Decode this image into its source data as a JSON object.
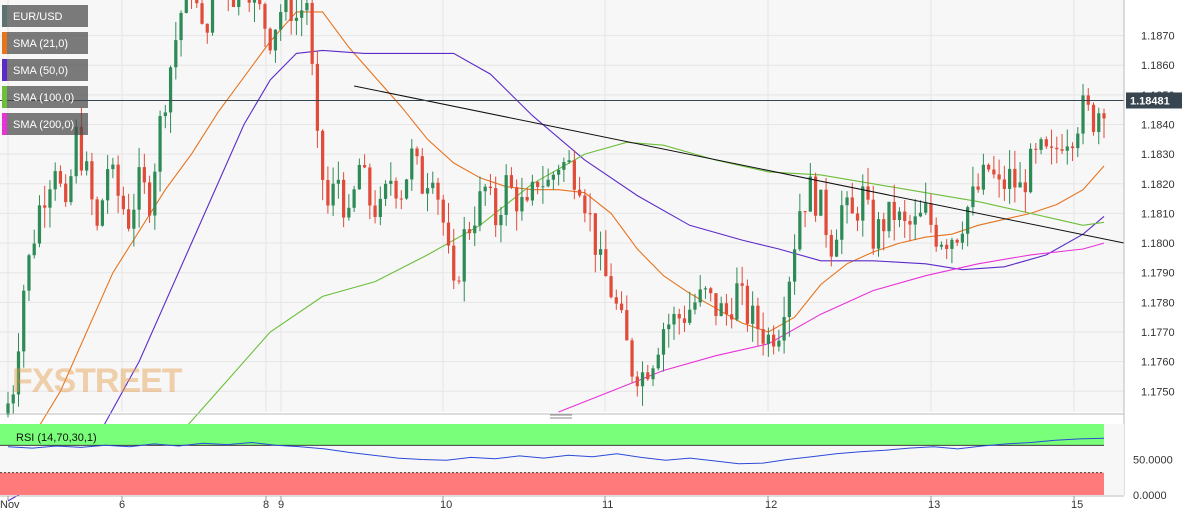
{
  "legend": [
    {
      "label": "EUR/USD",
      "color": "#5b7373"
    },
    {
      "label": "SMA (21,0)",
      "color": "#e8731d"
    },
    {
      "label": "SMA (50,0)",
      "color": "#5b2bc9"
    },
    {
      "label": "SMA (100,0)",
      "color": "#6cbf3a"
    },
    {
      "label": "SMA (200,0)",
      "color": "#e832d8"
    }
  ],
  "rsi_label": "RSI (14,70,30,1)",
  "watermark": "FXSTREET",
  "last_price_label": "1.18481",
  "colors": {
    "up": "#2e8b57",
    "down": "#e04b3a",
    "grid": "#e6e6e6",
    "overbought": "#79ff79",
    "oversold": "#ff7a7a",
    "rsi_line": "#2b4bd8",
    "trendline": "#111111",
    "last_price_bg": "#36454f"
  },
  "chart_data": [
    {
      "type": "candlestick",
      "title": "EUR/USD",
      "x_ticks": [
        "Nov",
        "6",
        "8",
        "9",
        "10",
        "11",
        "12",
        "13",
        "15"
      ],
      "y_ticks": [
        "1.1870",
        "1.1860",
        "1.1850",
        "1.1840",
        "1.1830",
        "1.1820",
        "1.1810",
        "1.1800",
        "1.1790",
        "1.1780",
        "1.1770",
        "1.1760",
        "1.1750"
      ],
      "ylim": [
        1.1743,
        1.1882
      ],
      "last_price": 1.18481,
      "grid": true,
      "legend_position": "top-left",
      "close_path": [
        [
          0,
          1.1746
        ],
        [
          1,
          1.1752
        ],
        [
          3,
          1.1785
        ],
        [
          6,
          1.1812
        ],
        [
          9,
          1.1828
        ],
        [
          11,
          1.1808
        ],
        [
          13,
          1.1836
        ],
        [
          15,
          1.1823
        ],
        [
          17,
          1.1804
        ],
        [
          19,
          1.1826
        ],
        [
          21,
          1.1816
        ],
        [
          23,
          1.1808
        ],
        [
          25,
          1.182
        ],
        [
          27,
          1.1815
        ],
        [
          29,
          1.184
        ],
        [
          31,
          1.186
        ],
        [
          33,
          1.1878
        ],
        [
          35,
          1.1888
        ],
        [
          37,
          1.187
        ],
        [
          39,
          1.1882
        ],
        [
          41,
          1.189
        ],
        [
          43,
          1.1884
        ],
        [
          45,
          1.1892
        ],
        [
          47,
          1.1882
        ],
        [
          50,
          1.187
        ],
        [
          53,
          1.1883
        ],
        [
          55,
          1.1876
        ],
        [
          57,
          1.1882
        ],
        [
          59,
          1.1832
        ],
        [
          61,
          1.1812
        ],
        [
          63,
          1.1822
        ],
        [
          65,
          1.1806
        ],
        [
          67,
          1.1826
        ],
        [
          69,
          1.1814
        ],
        [
          71,
          1.181
        ],
        [
          73,
          1.1822
        ],
        [
          75,
          1.1818
        ],
        [
          77,
          1.1829
        ],
        [
          79,
          1.182
        ],
        [
          81,
          1.1826
        ],
        [
          83,
          1.1807
        ],
        [
          85,
          1.1782
        ],
        [
          87,
          1.1802
        ],
        [
          89,
          1.181
        ],
        [
          91,
          1.1818
        ],
        [
          93,
          1.1808
        ],
        [
          95,
          1.182
        ],
        [
          97,
          1.1815
        ],
        [
          99,
          1.181
        ],
        [
          101,
          1.1822
        ],
        [
          103,
          1.182
        ],
        [
          105,
          1.1827
        ],
        [
          107,
          1.1826
        ],
        [
          109,
          1.1822
        ],
        [
          111,
          1.1808
        ],
        [
          113,
          1.1792
        ],
        [
          115,
          1.1784
        ],
        [
          117,
          1.1772
        ],
        [
          119,
          1.1758
        ],
        [
          121,
          1.1756
        ],
        [
          123,
          1.1762
        ],
        [
          125,
          1.1772
        ],
        [
          127,
          1.1774
        ],
        [
          129,
          1.1776
        ],
        [
          131,
          1.178
        ],
        [
          133,
          1.1782
        ],
        [
          135,
          1.1778
        ],
        [
          137,
          1.1776
        ],
        [
          139,
          1.1784
        ],
        [
          141,
          1.1776
        ],
        [
          143,
          1.1772
        ],
        [
          145,
          1.1768
        ],
        [
          147,
          1.1772
        ],
        [
          149,
          1.179
        ],
        [
          151,
          1.1812
        ],
        [
          153,
          1.1818
        ],
        [
          155,
          1.1812
        ],
        [
          157,
          1.18
        ],
        [
          159,
          1.1812
        ],
        [
          161,
          1.1808
        ],
        [
          163,
          1.1816
        ],
        [
          165,
          1.1802
        ],
        [
          167,
          1.1807
        ],
        [
          169,
          1.181
        ],
        [
          171,
          1.1805
        ],
        [
          173,
          1.1806
        ],
        [
          175,
          1.181
        ],
        [
          177,
          1.1803
        ],
        [
          179,
          1.1802
        ],
        [
          181,
          1.1804
        ],
        [
          183,
          1.1812
        ],
        [
          185,
          1.1818
        ],
        [
          187,
          1.1825
        ],
        [
          189,
          1.1818
        ],
        [
          191,
          1.1822
        ],
        [
          193,
          1.1818
        ],
        [
          195,
          1.1826
        ],
        [
          197,
          1.183
        ],
        [
          199,
          1.1828
        ],
        [
          201,
          1.1836
        ],
        [
          203,
          1.1838
        ],
        [
          205,
          1.1845
        ],
        [
          207,
          1.1842
        ],
        [
          209,
          1.1848
        ]
      ],
      "candles": 210,
      "sma": [
        {
          "name": "SMA (21,0)",
          "color": "#e8731d",
          "points": [
            [
              0,
              1.1721
            ],
            [
              10,
              1.175
            ],
            [
              20,
              1.179
            ],
            [
              30,
              1.1818
            ],
            [
              35,
              1.183
            ],
            [
              40,
              1.1844
            ],
            [
              50,
              1.1868
            ],
            [
              55,
              1.1878
            ],
            [
              60,
              1.1878
            ],
            [
              65,
              1.1866
            ],
            [
              70,
              1.1856
            ],
            [
              75,
              1.1846
            ],
            [
              80,
              1.1835
            ],
            [
              85,
              1.1827
            ],
            [
              90,
              1.1822
            ],
            [
              95,
              1.1819
            ],
            [
              100,
              1.1818
            ],
            [
              105,
              1.1818
            ],
            [
              110,
              1.1817
            ],
            [
              115,
              1.181
            ],
            [
              120,
              1.1798
            ],
            [
              125,
              1.1789
            ],
            [
              130,
              1.1783
            ],
            [
              135,
              1.1778
            ],
            [
              140,
              1.1773
            ],
            [
              145,
              1.177
            ],
            [
              150,
              1.1775
            ],
            [
              155,
              1.1786
            ],
            [
              160,
              1.1793
            ],
            [
              165,
              1.1797
            ],
            [
              170,
              1.18
            ],
            [
              175,
              1.1802
            ],
            [
              180,
              1.1803
            ],
            [
              185,
              1.1806
            ],
            [
              190,
              1.1808
            ],
            [
              195,
              1.181
            ],
            [
              200,
              1.1813
            ],
            [
              205,
              1.1818
            ],
            [
              209,
              1.1826
            ]
          ]
        },
        {
          "name": "SMA (50,0)",
          "color": "#5b2bc9",
          "points": [
            [
              0,
              1.1713
            ],
            [
              15,
              1.1728
            ],
            [
              25,
              1.176
            ],
            [
              35,
              1.18
            ],
            [
              45,
              1.184
            ],
            [
              50,
              1.1855
            ],
            [
              55,
              1.1864
            ],
            [
              60,
              1.1865
            ],
            [
              68,
              1.1864
            ],
            [
              75,
              1.1864
            ],
            [
              85,
              1.1864
            ],
            [
              92,
              1.1857
            ],
            [
              100,
              1.1843
            ],
            [
              110,
              1.1828
            ],
            [
              120,
              1.1816
            ],
            [
              130,
              1.1806
            ],
            [
              140,
              1.1801
            ],
            [
              147,
              1.1798
            ],
            [
              155,
              1.1794
            ],
            [
              165,
              1.1794
            ],
            [
              175,
              1.1793
            ],
            [
              182,
              1.1791
            ],
            [
              190,
              1.1792
            ],
            [
              198,
              1.1796
            ],
            [
              205,
              1.1803
            ],
            [
              209,
              1.1809
            ]
          ]
        },
        {
          "name": "SMA (100,0)",
          "color": "#6cbf3a",
          "points": [
            [
              30,
              1.173
            ],
            [
              40,
              1.175
            ],
            [
              50,
              1.177
            ],
            [
              60,
              1.1782
            ],
            [
              70,
              1.1787
            ],
            [
              80,
              1.1796
            ],
            [
              90,
              1.1806
            ],
            [
              100,
              1.182
            ],
            [
              110,
              1.183
            ],
            [
              118,
              1.1834
            ],
            [
              125,
              1.1833
            ],
            [
              135,
              1.1828
            ],
            [
              145,
              1.1824
            ],
            [
              155,
              1.1823
            ],
            [
              165,
              1.182
            ],
            [
              175,
              1.1817
            ],
            [
              185,
              1.1814
            ],
            [
              195,
              1.181
            ],
            [
              200,
              1.1808
            ],
            [
              205,
              1.1806
            ],
            [
              209,
              1.1807
            ]
          ]
        },
        {
          "name": "SMA (200,0)",
          "color": "#e832d8",
          "points": [
            [
              105,
              1.1743
            ],
            [
              115,
              1.175
            ],
            [
              125,
              1.1757
            ],
            [
              135,
              1.1762
            ],
            [
              145,
              1.1766
            ],
            [
              155,
              1.1776
            ],
            [
              165,
              1.1784
            ],
            [
              175,
              1.1789
            ],
            [
              185,
              1.1793
            ],
            [
              195,
              1.1796
            ],
            [
              205,
              1.1798
            ],
            [
              209,
              1.18
            ]
          ]
        }
      ],
      "trendline": [
        [
          66,
          1.1853
        ],
        [
          210,
          1.18
        ]
      ]
    },
    {
      "type": "line",
      "title": "RSI (14,70,30,1)",
      "y_ticks": [
        "50.0000",
        "0.0000"
      ],
      "ylim": [
        0,
        100
      ],
      "overbought": 70,
      "oversold": 30,
      "values": [
        68,
        66,
        69,
        67,
        70,
        68,
        72,
        69,
        73,
        71,
        74,
        70,
        68,
        65,
        60,
        56,
        52,
        50,
        49,
        53,
        51,
        55,
        52,
        56,
        54,
        58,
        53,
        49,
        52,
        48,
        44,
        45,
        50,
        54,
        58,
        61,
        63,
        66,
        68,
        65,
        69,
        72,
        74,
        77,
        79,
        80
      ]
    }
  ]
}
